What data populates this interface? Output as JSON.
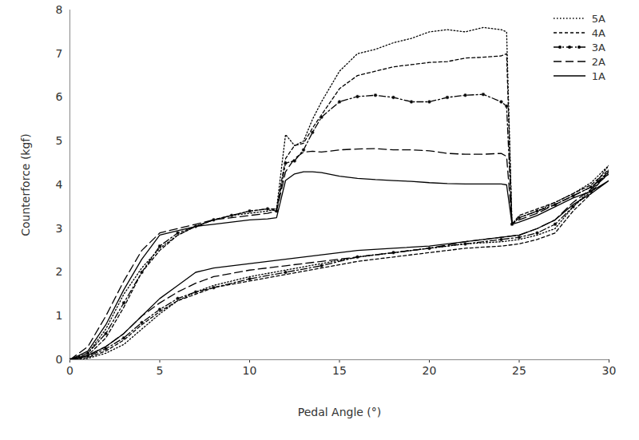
{
  "chart_data": {
    "type": "line",
    "x_label": "Pedal Angle (°)",
    "y_label": "Counterforce (kgf)",
    "x": [
      0,
      1,
      2,
      3,
      4,
      5,
      6,
      7,
      8,
      9,
      10,
      11,
      11.5,
      12,
      12.5,
      13,
      13.5,
      14,
      15,
      16,
      17,
      18,
      19,
      20,
      21,
      22,
      23,
      24,
      24.3,
      24.6,
      25,
      26,
      27,
      28,
      29,
      30,
      29,
      28,
      27,
      26,
      25,
      24,
      22,
      20,
      18,
      16,
      14,
      12,
      10,
      8,
      7,
      6,
      5,
      4,
      3,
      2,
      1,
      0
    ],
    "series": [
      {
        "name": "5A",
        "color": "#000000",
        "line_style": "dotted",
        "values": [
          0,
          0.15,
          0.7,
          1.5,
          2.1,
          2.55,
          2.85,
          3.05,
          3.2,
          3.3,
          3.35,
          3.4,
          3.45,
          5.15,
          4.9,
          5.0,
          5.5,
          5.9,
          6.6,
          7.0,
          7.1,
          7.25,
          7.35,
          7.5,
          7.55,
          7.5,
          7.6,
          7.55,
          7.5,
          3.1,
          3.25,
          3.4,
          3.6,
          3.8,
          4.05,
          4.45,
          3.9,
          3.5,
          3.0,
          2.85,
          2.75,
          2.7,
          2.65,
          2.55,
          2.45,
          2.35,
          2.2,
          2.05,
          1.9,
          1.7,
          1.55,
          1.35,
          1.05,
          0.7,
          0.35,
          0.15,
          0.03,
          0
        ]
      },
      {
        "name": "4A",
        "color": "#000000",
        "line_style": "dashed",
        "values": [
          0,
          0.1,
          0.5,
          1.2,
          2.0,
          2.5,
          2.85,
          3.05,
          3.2,
          3.3,
          3.4,
          3.45,
          3.45,
          4.6,
          4.9,
          4.95,
          5.3,
          5.6,
          6.2,
          6.5,
          6.6,
          6.7,
          6.75,
          6.8,
          6.82,
          6.9,
          6.92,
          6.95,
          7.0,
          3.1,
          3.3,
          3.45,
          3.6,
          3.8,
          4.0,
          4.35,
          3.8,
          3.4,
          2.9,
          2.75,
          2.65,
          2.6,
          2.55,
          2.45,
          2.35,
          2.25,
          2.1,
          1.95,
          1.8,
          1.65,
          1.5,
          1.35,
          1.1,
          0.8,
          0.45,
          0.2,
          0.05,
          0
        ]
      },
      {
        "name": "3A",
        "color": "#000000",
        "line_style": "dashdot",
        "marker": "circle",
        "values": [
          0,
          0.15,
          0.6,
          1.3,
          2.0,
          2.6,
          2.9,
          3.05,
          3.2,
          3.3,
          3.4,
          3.45,
          3.4,
          4.5,
          4.55,
          4.8,
          5.2,
          5.55,
          5.9,
          6.02,
          6.05,
          6.0,
          5.9,
          5.9,
          6.0,
          6.05,
          6.07,
          5.9,
          5.8,
          3.1,
          3.25,
          3.4,
          3.55,
          3.75,
          3.95,
          4.3,
          3.85,
          3.5,
          3.1,
          2.9,
          2.8,
          2.75,
          2.65,
          2.55,
          2.45,
          2.35,
          2.15,
          2.0,
          1.85,
          1.65,
          1.55,
          1.4,
          1.15,
          0.85,
          0.5,
          0.25,
          0.08,
          0
        ]
      },
      {
        "name": "2A",
        "color": "#000000",
        "line_style": "longdash",
        "values": [
          0,
          0.3,
          1.0,
          1.8,
          2.5,
          2.9,
          3.0,
          3.1,
          3.2,
          3.25,
          3.3,
          3.35,
          3.4,
          4.3,
          4.6,
          4.75,
          4.77,
          4.75,
          4.8,
          4.82,
          4.83,
          4.8,
          4.8,
          4.78,
          4.72,
          4.7,
          4.7,
          4.72,
          4.65,
          3.12,
          3.2,
          3.35,
          3.55,
          3.75,
          3.95,
          4.25,
          3.9,
          3.6,
          3.2,
          3.0,
          2.85,
          2.8,
          2.7,
          2.55,
          2.45,
          2.35,
          2.25,
          2.15,
          2.05,
          1.9,
          1.75,
          1.55,
          1.3,
          1.0,
          0.6,
          0.3,
          0.1,
          0
        ]
      },
      {
        "name": "1A",
        "color": "#000000",
        "line_style": "solid",
        "values": [
          0,
          0.2,
          0.8,
          1.6,
          2.3,
          2.85,
          2.95,
          3.05,
          3.1,
          3.15,
          3.2,
          3.22,
          3.25,
          4.1,
          4.25,
          4.3,
          4.3,
          4.28,
          4.2,
          4.15,
          4.12,
          4.1,
          4.08,
          4.05,
          4.03,
          4.02,
          4.02,
          4.02,
          4.0,
          3.1,
          3.15,
          3.3,
          3.5,
          3.7,
          3.85,
          4.1,
          3.8,
          3.55,
          3.2,
          3.0,
          2.85,
          2.8,
          2.7,
          2.6,
          2.55,
          2.5,
          2.4,
          2.3,
          2.2,
          2.1,
          2.0,
          1.7,
          1.4,
          1.0,
          0.6,
          0.3,
          0.1,
          0
        ]
      }
    ],
    "xlim": [
      0,
      30
    ],
    "xticks": [
      0,
      5,
      10,
      15,
      20,
      25,
      30
    ],
    "ylim": [
      0,
      8
    ],
    "yticks": [
      0,
      1,
      2,
      3,
      4,
      5,
      6,
      7,
      8
    ],
    "grid": false,
    "legend": "top-right"
  }
}
